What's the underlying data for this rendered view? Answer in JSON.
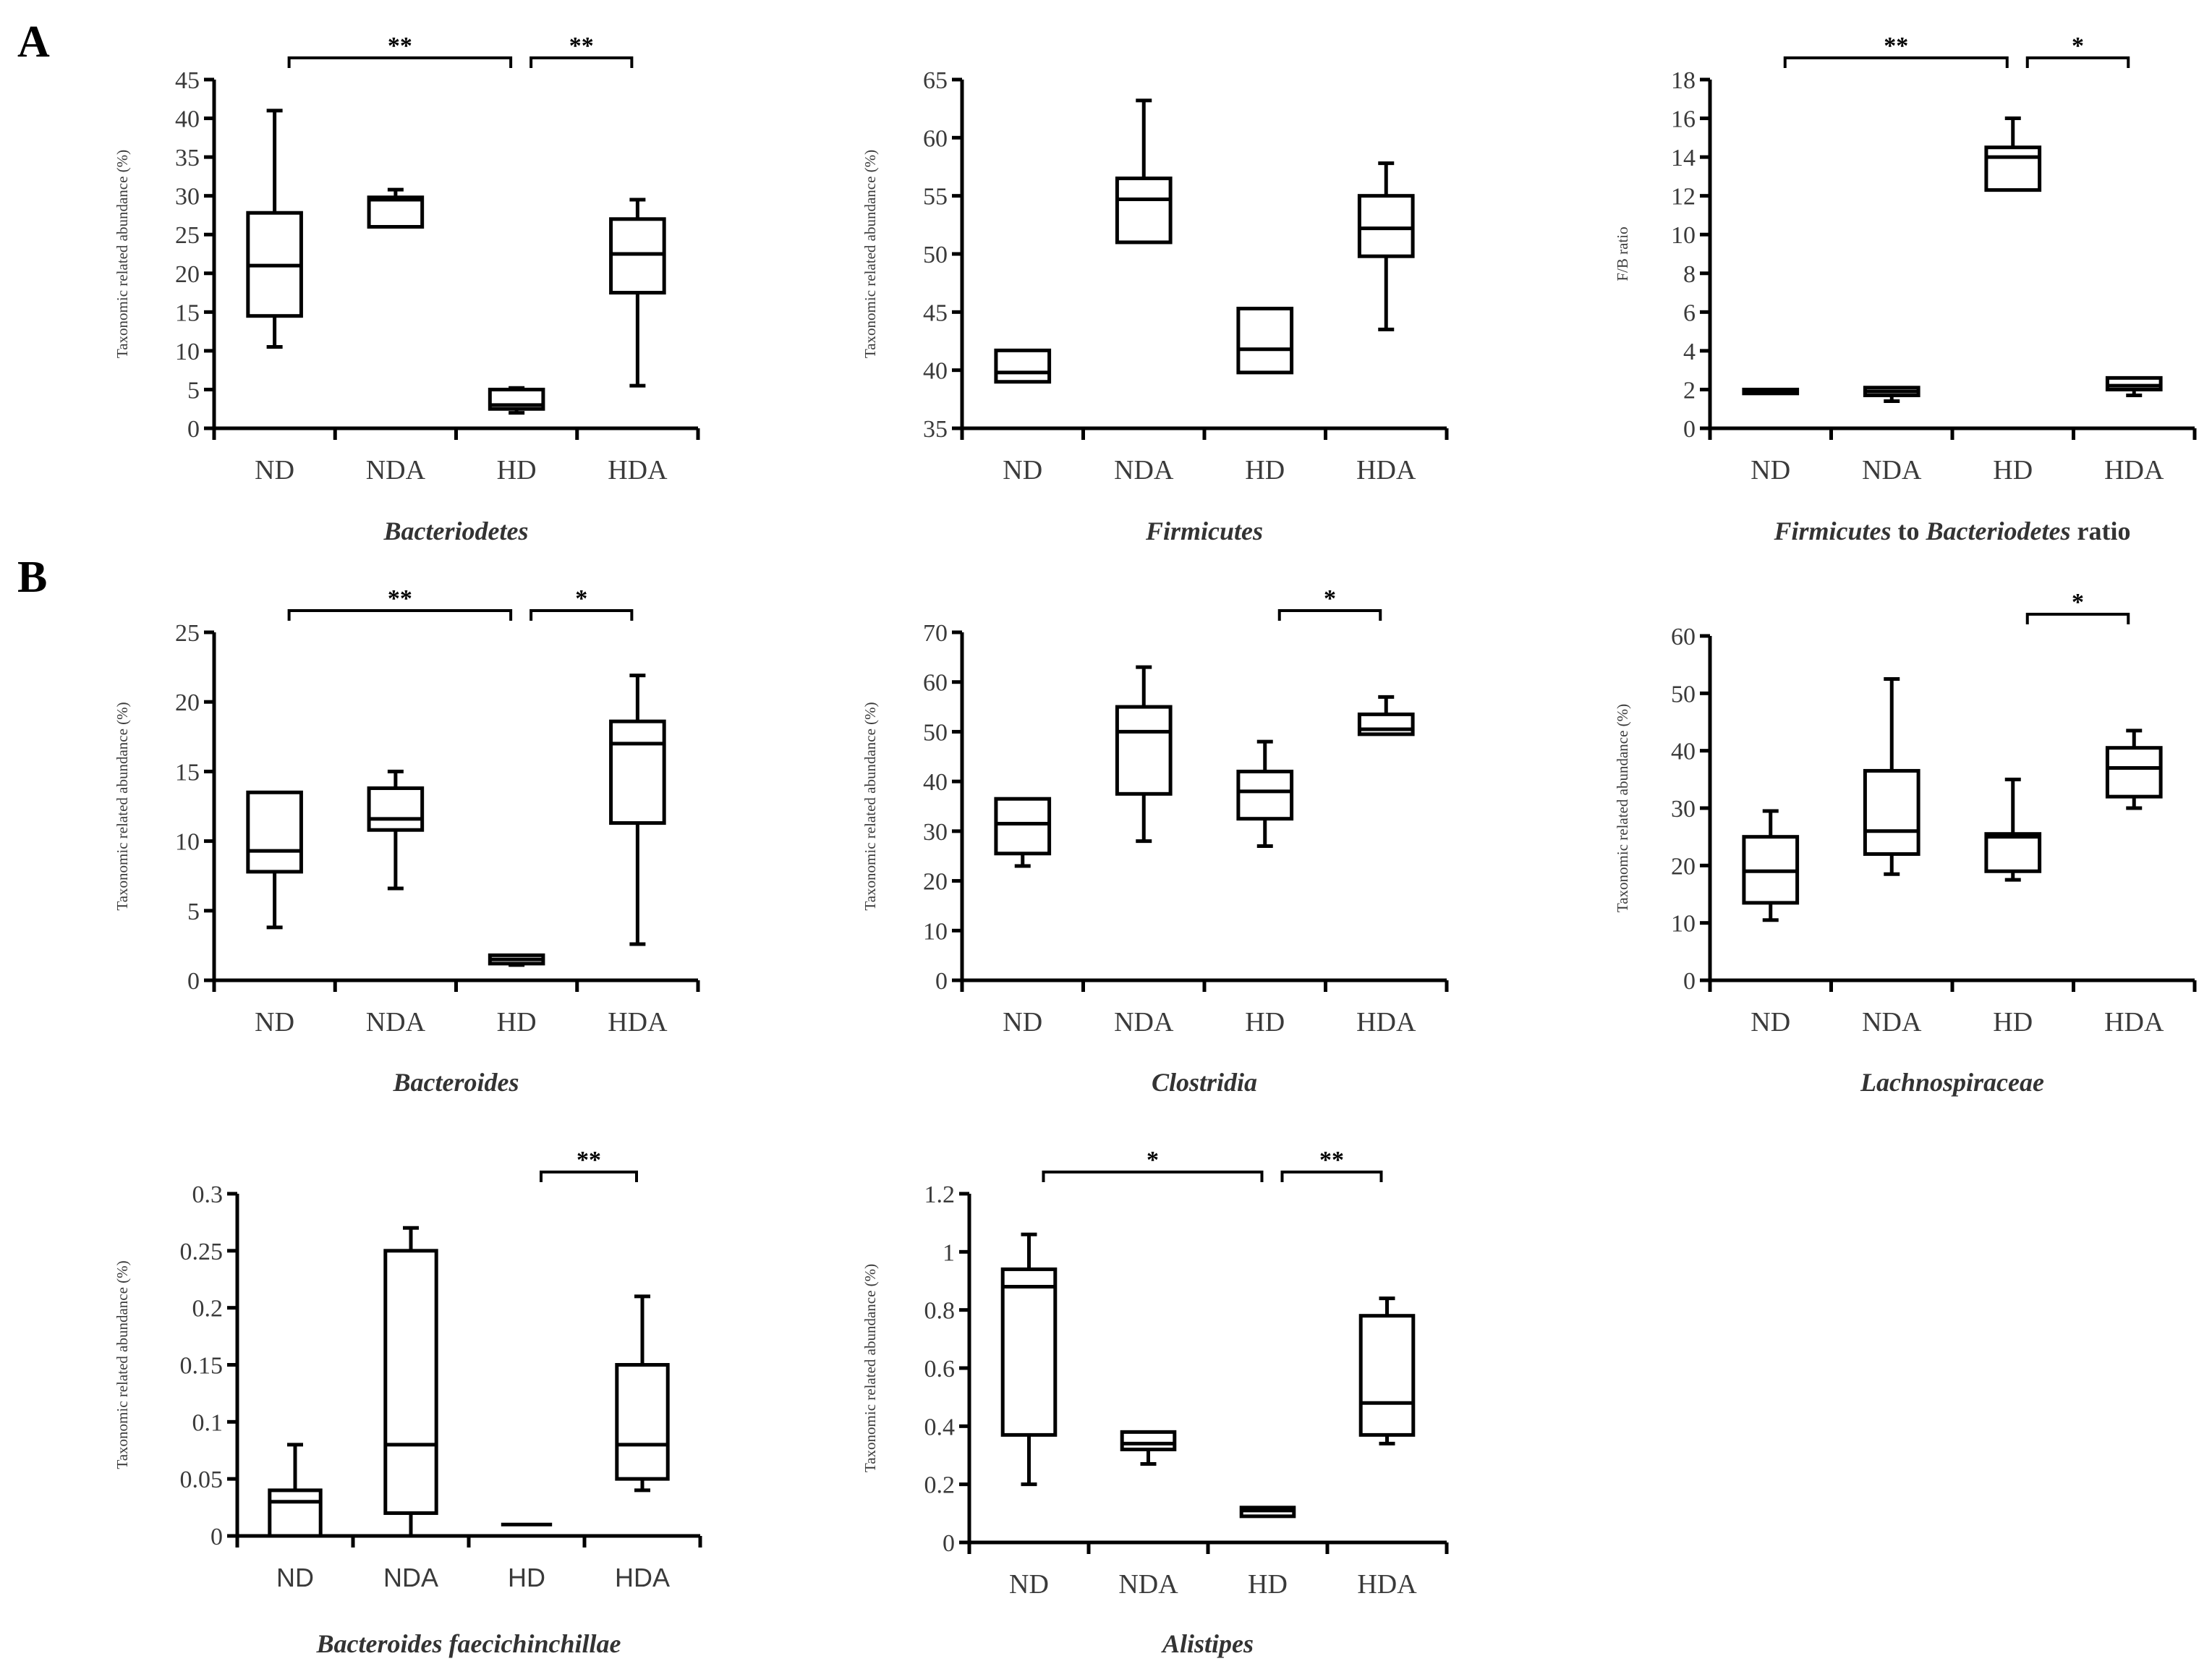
{
  "panel_labels": [
    "A",
    "B"
  ],
  "chart_data": [
    {
      "type": "box",
      "panel": "A",
      "title": "Bacteriodetes",
      "ylabel": "Taxonomic related abundance (%)",
      "categories": [
        "ND",
        "NDA",
        "HD",
        "HDA"
      ],
      "ylim": [
        0,
        45
      ],
      "yticks": [
        0,
        5,
        10,
        15,
        20,
        25,
        30,
        35,
        40,
        45
      ],
      "ytick_labels": [
        "0",
        "5",
        "10",
        "15",
        "20",
        "25",
        "30",
        "35",
        "40",
        "45"
      ],
      "boxes": [
        {
          "category": "ND",
          "min": 10.5,
          "q1": 14.5,
          "median": 21,
          "q3": 27.8,
          "max": 41
        },
        {
          "category": "NDA",
          "min": 26,
          "q1": 26,
          "median": 29.5,
          "q3": 29.8,
          "max": 30.8
        },
        {
          "category": "HD",
          "min": 2,
          "q1": 2.5,
          "median": 3,
          "q3": 5,
          "max": 5.2
        },
        {
          "category": "HDA",
          "min": 5.5,
          "q1": 17.5,
          "median": 22.5,
          "q3": 27,
          "max": 29.5
        }
      ],
      "significance": [
        {
          "from": "ND",
          "to": "HD",
          "label": "**"
        },
        {
          "from": "HD",
          "to": "HDA",
          "label": "**"
        }
      ]
    },
    {
      "type": "box",
      "panel": "A",
      "title": "Firmicutes",
      "ylabel": "Taxonomic related abundance (%)",
      "categories": [
        "ND",
        "NDA",
        "HD",
        "HDA"
      ],
      "ylim": [
        35,
        65
      ],
      "yticks": [
        35,
        40,
        45,
        50,
        55,
        60,
        65
      ],
      "ytick_labels": [
        "35",
        "40",
        "45",
        "50",
        "55",
        "60",
        "65"
      ],
      "boxes": [
        {
          "category": "ND",
          "min": 39,
          "q1": 39,
          "median": 39.8,
          "q3": 41.7,
          "max": 41.7
        },
        {
          "category": "NDA",
          "min": 51,
          "q1": 51,
          "median": 54.7,
          "q3": 56.5,
          "max": 63.2
        },
        {
          "category": "HD",
          "min": 39.8,
          "q1": 39.8,
          "median": 41.8,
          "q3": 45.3,
          "max": 45.3
        },
        {
          "category": "HDA",
          "min": 43.5,
          "q1": 49.8,
          "median": 52.2,
          "q3": 55,
          "max": 57.8
        }
      ],
      "significance": []
    },
    {
      "type": "box",
      "panel": "A",
      "title": "Firmicutes",
      "title_plain": " to ",
      "title_tail": "Bacteriodetes",
      "title_end": " ratio",
      "ylabel": "F/B ratio",
      "categories": [
        "ND",
        "NDA",
        "HD",
        "HDA"
      ],
      "ylim": [
        0,
        18
      ],
      "yticks": [
        0,
        2,
        4,
        6,
        8,
        10,
        12,
        14,
        16,
        18
      ],
      "ytick_labels": [
        "0",
        "2",
        "4",
        "6",
        "8",
        "10",
        "12",
        "14",
        "16",
        "18"
      ],
      "boxes": [
        {
          "category": "ND",
          "min": 1.8,
          "q1": 1.8,
          "median": 1.9,
          "q3": 2,
          "max": 2
        },
        {
          "category": "NDA",
          "min": 1.4,
          "q1": 1.7,
          "median": 1.9,
          "q3": 2.1,
          "max": 2.1
        },
        {
          "category": "HD",
          "min": 12.3,
          "q1": 12.3,
          "median": 14,
          "q3": 14.5,
          "max": 16
        },
        {
          "category": "HDA",
          "min": 1.7,
          "q1": 2,
          "median": 2.2,
          "q3": 2.6,
          "max": 2.6
        }
      ],
      "significance": [
        {
          "from": "ND",
          "to": "HD",
          "label": "**"
        },
        {
          "from": "HD",
          "to": "HDA",
          "label": "*"
        }
      ]
    },
    {
      "type": "box",
      "panel": "B",
      "title": "Bacteroides",
      "ylabel": "Taxonomic related abundance (%)",
      "categories": [
        "ND",
        "NDA",
        "HD",
        "HDA"
      ],
      "ylim": [
        0,
        25
      ],
      "yticks": [
        0,
        5,
        10,
        15,
        20,
        25
      ],
      "ytick_labels": [
        "0",
        "5",
        "10",
        "15",
        "20",
        "25"
      ],
      "boxes": [
        {
          "category": "ND",
          "min": 3.8,
          "q1": 7.8,
          "median": 9.3,
          "q3": 13.5,
          "max": 13.5
        },
        {
          "category": "NDA",
          "min": 6.6,
          "q1": 10.8,
          "median": 11.6,
          "q3": 13.8,
          "max": 15
        },
        {
          "category": "HD",
          "min": 1.1,
          "q1": 1.2,
          "median": 1.5,
          "q3": 1.8,
          "max": 1.8
        },
        {
          "category": "HDA",
          "min": 2.6,
          "q1": 11.3,
          "median": 17,
          "q3": 18.6,
          "max": 21.9
        }
      ],
      "significance": [
        {
          "from": "ND",
          "to": "HD",
          "label": "**"
        },
        {
          "from": "HD",
          "to": "HDA",
          "label": "*"
        }
      ]
    },
    {
      "type": "box",
      "panel": "B",
      "title": "Clostridia",
      "ylabel": "Taxonomic related abundance (%)",
      "categories": [
        "ND",
        "NDA",
        "HD",
        "HDA"
      ],
      "ylim": [
        0,
        70
      ],
      "yticks": [
        0,
        10,
        20,
        30,
        40,
        50,
        60,
        70
      ],
      "ytick_labels": [
        "0",
        "10",
        "20",
        "30",
        "40",
        "50",
        "60",
        "70"
      ],
      "boxes": [
        {
          "category": "ND",
          "min": 23,
          "q1": 25.5,
          "median": 31.5,
          "q3": 36.5,
          "max": 36.5
        },
        {
          "category": "NDA",
          "min": 28,
          "q1": 37.5,
          "median": 50,
          "q3": 55,
          "max": 63
        },
        {
          "category": "HD",
          "min": 27,
          "q1": 32.5,
          "median": 38,
          "q3": 42,
          "max": 48
        },
        {
          "category": "HDA",
          "min": 49.5,
          "q1": 49.5,
          "median": 50.5,
          "q3": 53.5,
          "max": 57
        }
      ],
      "significance": [
        {
          "from": "HD",
          "to": "HDA",
          "label": "*"
        }
      ]
    },
    {
      "type": "box",
      "panel": "B",
      "title": "Lachnospiraceae",
      "ylabel": "Taxonomic related abundance (%)",
      "categories": [
        "ND",
        "NDA",
        "HD",
        "HDA"
      ],
      "ylim": [
        0,
        60
      ],
      "yticks": [
        0,
        10,
        20,
        30,
        40,
        50,
        60
      ],
      "ytick_labels": [
        "0",
        "10",
        "20",
        "30",
        "40",
        "50",
        "60"
      ],
      "boxes": [
        {
          "category": "ND",
          "min": 10.5,
          "q1": 13.5,
          "median": 19,
          "q3": 25,
          "max": 29.5
        },
        {
          "category": "NDA",
          "min": 18.5,
          "q1": 22,
          "median": 26,
          "q3": 36.5,
          "max": 52.5
        },
        {
          "category": "HD",
          "min": 17.5,
          "q1": 19,
          "median": 25,
          "q3": 25.5,
          "max": 35
        },
        {
          "category": "HDA",
          "min": 30,
          "q1": 32,
          "median": 37,
          "q3": 40.5,
          "max": 43.5
        }
      ],
      "significance": [
        {
          "from": "HD",
          "to": "HDA",
          "label": "*"
        }
      ]
    },
    {
      "type": "box",
      "panel": "B",
      "title": "Bacteroides faecichinchillae",
      "ylabel": "Taxonomic related abundance (%)",
      "categories": [
        "ND",
        "NDA",
        "HD",
        "HDA"
      ],
      "ylim": [
        0,
        0.3
      ],
      "yticks": [
        0,
        0.05,
        0.1,
        0.15,
        0.2,
        0.25,
        0.3
      ],
      "ytick_labels": [
        "0",
        "0.05",
        "0.1",
        "0.15",
        "0.2",
        "0.25",
        "0.3"
      ],
      "boxes": [
        {
          "category": "ND",
          "min": 0,
          "q1": 0,
          "median": 0.03,
          "q3": 0.04,
          "max": 0.08
        },
        {
          "category": "NDA",
          "min": 0,
          "q1": 0.02,
          "median": 0.08,
          "q3": 0.25,
          "max": 0.27
        },
        {
          "category": "HD",
          "min": 0.01,
          "q1": 0.01,
          "median": 0.01,
          "q3": 0.01,
          "max": 0.01
        },
        {
          "category": "HDA",
          "min": 0.04,
          "q1": 0.05,
          "median": 0.08,
          "q3": 0.15,
          "max": 0.21
        }
      ],
      "significance": [
        {
          "from": "HD",
          "to": "HDA",
          "label": "**"
        }
      ]
    },
    {
      "type": "box",
      "panel": "B",
      "title": "Alistipes",
      "ylabel": "Taxonomic related abundance (%)",
      "categories": [
        "ND",
        "NDA",
        "HD",
        "HDA"
      ],
      "ylim": [
        0,
        1.2
      ],
      "yticks": [
        0,
        0.2,
        0.4,
        0.6,
        0.8,
        1,
        1.2
      ],
      "ytick_labels": [
        "0",
        "0.2",
        "0.4",
        "0.6",
        "0.8",
        "1",
        "1.2"
      ],
      "boxes": [
        {
          "category": "ND",
          "min": 0.2,
          "q1": 0.37,
          "median": 0.88,
          "q3": 0.94,
          "max": 1.06
        },
        {
          "category": "NDA",
          "min": 0.27,
          "q1": 0.32,
          "median": 0.34,
          "q3": 0.38,
          "max": 0.38
        },
        {
          "category": "HD",
          "min": 0.09,
          "q1": 0.09,
          "median": 0.11,
          "q3": 0.12,
          "max": 0.12
        },
        {
          "category": "HDA",
          "min": 0.34,
          "q1": 0.37,
          "median": 0.48,
          "q3": 0.78,
          "max": 0.84
        }
      ],
      "significance": [
        {
          "from": "ND",
          "to": "HD",
          "label": "*"
        },
        {
          "from": "HD",
          "to": "HDA",
          "label": "**"
        }
      ]
    }
  ]
}
